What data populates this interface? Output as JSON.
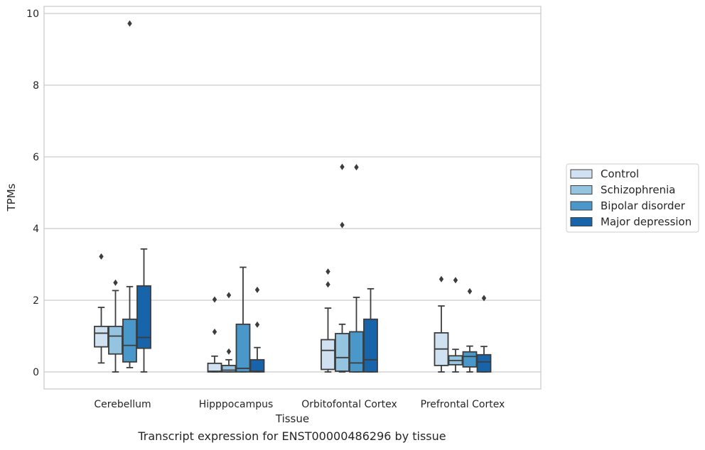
{
  "caption": "Transcript expression for ENST00000486296 by tissue",
  "chart_data": {
    "type": "box",
    "xlabel": "Tissue",
    "ylabel": "TPMs",
    "ylim": [
      -0.45,
      10.2
    ],
    "yticks": [
      0,
      2,
      4,
      6,
      8,
      10
    ],
    "grid": "horizontal",
    "legend_position": "right",
    "categories": [
      "Cerebellum",
      "Hipppocampus",
      "Orbitofontal Cortex",
      "Prefrontal Cortex"
    ],
    "series": [
      {
        "name": "Control",
        "color": "#d0e1f2",
        "boxes": [
          {
            "whislo": 0.25,
            "q1": 0.7,
            "med": 1.08,
            "q3": 1.27,
            "whishi": 1.8,
            "fliers": [
              3.22
            ]
          },
          {
            "whislo": 0.0,
            "q1": 0.0,
            "med": 0.02,
            "q3": 0.24,
            "whishi": 0.44,
            "fliers": [
              2.02,
              1.12
            ]
          },
          {
            "whislo": 0.0,
            "q1": 0.07,
            "med": 0.6,
            "q3": 0.9,
            "whishi": 1.78,
            "fliers": [
              2.8,
              2.44
            ]
          },
          {
            "whislo": 0.0,
            "q1": 0.18,
            "med": 0.64,
            "q3": 1.09,
            "whishi": 1.84,
            "fliers": [
              2.59
            ]
          }
        ]
      },
      {
        "name": "Schizophrenia",
        "color": "#94c4df",
        "boxes": [
          {
            "whislo": 0.0,
            "q1": 0.5,
            "med": 1.0,
            "q3": 1.27,
            "whishi": 2.27,
            "fliers": [
              2.49
            ]
          },
          {
            "whislo": 0.0,
            "q1": 0.0,
            "med": 0.05,
            "q3": 0.18,
            "whishi": 0.34,
            "fliers": [
              2.14,
              0.57
            ]
          },
          {
            "whislo": 0.0,
            "q1": 0.02,
            "med": 0.4,
            "q3": 1.07,
            "whishi": 1.33,
            "fliers": [
              5.72,
              4.1
            ]
          },
          {
            "whislo": 0.0,
            "q1": 0.2,
            "med": 0.32,
            "q3": 0.45,
            "whishi": 0.63,
            "fliers": [
              2.56
            ]
          }
        ]
      },
      {
        "name": "Bipolar disorder",
        "color": "#4a98c9",
        "boxes": [
          {
            "whislo": 0.12,
            "q1": 0.28,
            "med": 0.74,
            "q3": 1.47,
            "whishi": 2.38,
            "fliers": [
              9.72
            ]
          },
          {
            "whislo": 0.0,
            "q1": 0.0,
            "med": 0.1,
            "q3": 1.33,
            "whishi": 2.92,
            "fliers": []
          },
          {
            "whislo": 0.0,
            "q1": 0.0,
            "med": 0.25,
            "q3": 1.12,
            "whishi": 2.08,
            "fliers": [
              5.71
            ]
          },
          {
            "whislo": 0.0,
            "q1": 0.14,
            "med": 0.43,
            "q3": 0.56,
            "whishi": 0.72,
            "fliers": [
              2.25
            ]
          }
        ]
      },
      {
        "name": "Major depression",
        "color": "#1764ab",
        "boxes": [
          {
            "whislo": 0.0,
            "q1": 0.66,
            "med": 0.96,
            "q3": 2.4,
            "whishi": 3.43,
            "fliers": []
          },
          {
            "whislo": 0.0,
            "q1": 0.0,
            "med": 0.02,
            "q3": 0.34,
            "whishi": 0.68,
            "fliers": [
              2.29,
              1.32
            ]
          },
          {
            "whislo": 0.0,
            "q1": 0.0,
            "med": 0.34,
            "q3": 1.47,
            "whishi": 2.32,
            "fliers": []
          },
          {
            "whislo": 0.0,
            "q1": 0.0,
            "med": 0.28,
            "q3": 0.48,
            "whishi": 0.71,
            "fliers": [
              2.06
            ]
          }
        ]
      }
    ]
  }
}
